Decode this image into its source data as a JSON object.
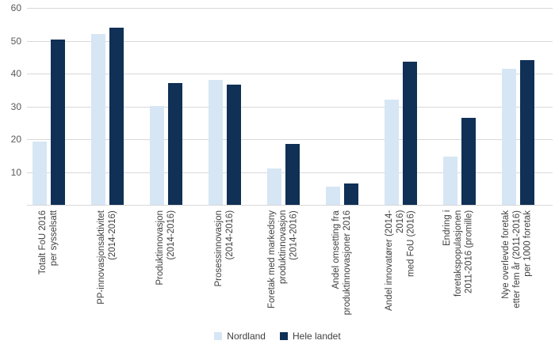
{
  "chart_data": {
    "type": "bar",
    "title": "",
    "xlabel": "",
    "ylabel": "",
    "categories": [
      "Totalt FoU 2016\nper sysselsatt",
      "PP-innovasjonsaktivitet\n(2014-2016)",
      "Produktinnovasjon\n(2014-2016)",
      "Prosessinnovasjon\n(2014-2016)",
      "Foretak med markedsny\nproduktinnovasjon\n(2014-2016)",
      "Andel omsetting fra\nproduktinnovasjoner 2016",
      "Andel innovatører (2014-2016)\nmed FoU (2016)",
      "Endring i foretakspopulasjonen\n2011-2016 (promille)",
      "Nye overlevde foretak\netter fem år (2011-2016)\nper 1000 foretak"
    ],
    "series": [
      {
        "name": "Nordland",
        "color": "#d6e6f4",
        "values": [
          19.3,
          52,
          30,
          38,
          11.2,
          5.5,
          32,
          14.8,
          41.5
        ]
      },
      {
        "name": "Hele landet",
        "color": "#103056",
        "values": [
          50.3,
          54,
          37,
          36.7,
          18.5,
          6.6,
          43.5,
          26.5,
          44
        ]
      }
    ],
    "ylim": [
      0,
      60
    ],
    "yticks": [
      10,
      20,
      30,
      40,
      50,
      60
    ],
    "grid": true,
    "legend_position": "bottom",
    "colors": {
      "gridline": "#d9d9d9",
      "baseline": "#d9d9d9",
      "tick_label": "#595959",
      "category_label": "#404040",
      "background": "#ffffff"
    }
  }
}
